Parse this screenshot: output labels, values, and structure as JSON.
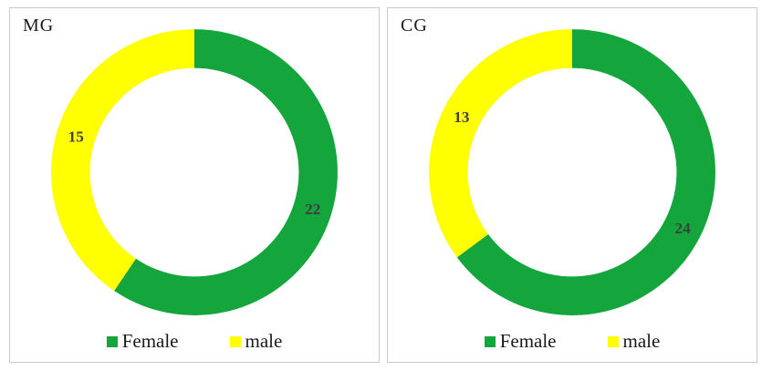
{
  "figure": {
    "background": "#ffffff",
    "panel_border_color": "#c9c9c9"
  },
  "chart_data": [
    {
      "type": "pie",
      "subtype": "donut",
      "title": "MG",
      "categories": [
        "Female",
        "male"
      ],
      "values": [
        22,
        15
      ],
      "colors": [
        "#14A53C",
        "#FFFF00"
      ],
      "label_color": "#3f3f3f",
      "legend_position": "bottom",
      "start_angle_deg": 0,
      "direction": "clockwise"
    },
    {
      "type": "pie",
      "subtype": "donut",
      "title": "CG",
      "categories": [
        "Female",
        "male"
      ],
      "values": [
        24,
        13
      ],
      "colors": [
        "#14A53C",
        "#FFFF00"
      ],
      "label_color": "#3f3f3f",
      "legend_position": "bottom",
      "start_angle_deg": 0,
      "direction": "clockwise"
    }
  ]
}
